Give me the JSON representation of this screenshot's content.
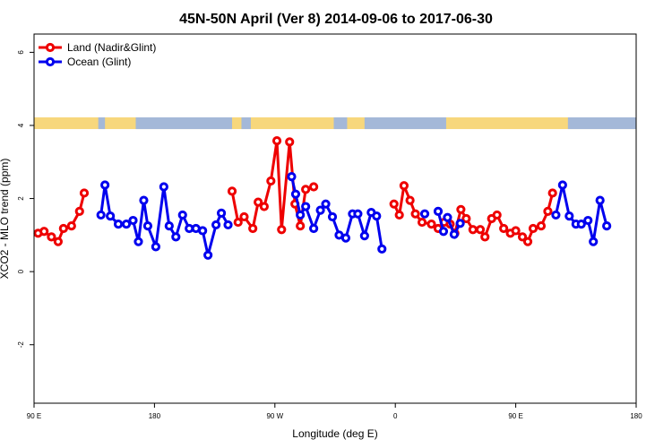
{
  "chart_data": {
    "type": "line",
    "title": "45N-50N April (Ver 8)   2014-09-06 to 2017-06-30",
    "xlabel": "Longitude (deg E)",
    "ylabel": "XCO2 - MLO trend (ppm)",
    "x_ticks": [
      {
        "value": 90,
        "label": "90 E"
      },
      {
        "value": 180,
        "label": "180"
      },
      {
        "value": 270,
        "label": "90 W"
      },
      {
        "value": 360,
        "label": "0"
      },
      {
        "value": 450,
        "label": "90 E"
      },
      {
        "value": 540,
        "label": "180"
      }
    ],
    "y_ticks": [
      {
        "value": -2,
        "label": "-2"
      },
      {
        "value": 0,
        "label": "0"
      },
      {
        "value": 2,
        "label": "2"
      },
      {
        "value": 4,
        "label": "4"
      },
      {
        "value": 6,
        "label": "6"
      }
    ],
    "xlim": [
      90,
      540
    ],
    "ylim": [
      -3.6,
      6.5
    ],
    "grid": false,
    "legend_position": "top-left",
    "land_mask": {
      "y_range": [
        3.9,
        4.22
      ],
      "land_color": "#f7d77c",
      "ocean_color": "#a4b8d8",
      "ocean_spans": [
        [
          138,
          143
        ],
        [
          166,
          238
        ],
        [
          245,
          252
        ],
        [
          314,
          324
        ],
        [
          337,
          398
        ],
        [
          489,
          540
        ]
      ]
    },
    "series": [
      {
        "name": "Land (Nadir&Glint)",
        "color": "#ee0000",
        "segments": [
          [
            [
              93,
              1.05
            ],
            [
              97.5,
              1.1
            ],
            [
              103,
              0.95
            ],
            [
              108,
              0.82
            ],
            [
              112,
              1.18
            ],
            [
              118,
              1.25
            ],
            [
              124,
              1.65
            ],
            [
              127.5,
              2.15
            ]
          ],
          [
            [
              238,
              2.2
            ],
            [
              242.5,
              1.35
            ],
            [
              247,
              1.5
            ],
            [
              253.5,
              1.18
            ],
            [
              257.5,
              1.9
            ],
            [
              262,
              1.78
            ],
            [
              267,
              2.48
            ],
            [
              271.5,
              3.58
            ],
            [
              275,
              1.15
            ],
            [
              281,
              3.55
            ],
            [
              285,
              1.85
            ],
            [
              289,
              1.25
            ],
            [
              293,
              2.25
            ],
            [
              299,
              2.32
            ]
          ],
          [
            [
              359,
              1.85
            ],
            [
              363,
              1.55
            ],
            [
              366.5,
              2.35
            ],
            [
              371,
              1.95
            ],
            [
              375,
              1.58
            ],
            [
              380,
              1.35
            ],
            [
              387,
              1.3
            ],
            [
              392,
              1.18
            ],
            [
              396.5,
              1.35
            ],
            [
              401,
              1.3
            ],
            [
              404.5,
              1.05
            ],
            [
              409,
              1.7
            ],
            [
              413,
              1.45
            ],
            [
              418,
              1.15
            ],
            [
              423.5,
              1.15
            ],
            [
              427,
              0.95
            ],
            [
              432,
              1.45
            ],
            [
              436,
              1.55
            ],
            [
              441,
              1.18
            ],
            [
              446,
              1.05
            ],
            [
              450,
              1.12
            ],
            [
              455,
              0.95
            ],
            [
              459,
              0.82
            ],
            [
              463,
              1.18
            ],
            [
              469,
              1.25
            ],
            [
              474,
              1.65
            ],
            [
              477.5,
              2.15
            ]
          ]
        ]
      },
      {
        "name": "Ocean (Glint)",
        "color": "#0000ee",
        "segments": [
          [
            [
              140,
              1.55
            ],
            [
              143,
              2.37
            ],
            [
              147,
              1.52
            ],
            [
              153,
              1.3
            ],
            [
              159,
              1.3
            ],
            [
              164,
              1.4
            ],
            [
              168,
              0.82
            ],
            [
              172,
              1.95
            ],
            [
              175,
              1.25
            ],
            [
              181,
              0.68
            ],
            [
              187,
              2.32
            ],
            [
              191,
              1.25
            ],
            [
              196,
              0.95
            ],
            [
              201,
              1.55
            ],
            [
              206,
              1.18
            ],
            [
              211,
              1.18
            ],
            [
              216,
              1.12
            ],
            [
              220,
              0.45
            ],
            [
              226,
              1.28
            ],
            [
              230,
              1.6
            ],
            [
              235,
              1.28
            ]
          ],
          [
            [
              282.5,
              2.6
            ],
            [
              285.5,
              2.12
            ],
            [
              289,
              1.55
            ],
            [
              293,
              1.78
            ],
            [
              299,
              1.18
            ],
            [
              304,
              1.68
            ],
            [
              308,
              1.85
            ],
            [
              313,
              1.5
            ],
            [
              318,
              1.0
            ],
            [
              323,
              0.92
            ],
            [
              328,
              1.58
            ],
            [
              332,
              1.58
            ],
            [
              337,
              0.98
            ],
            [
              342,
              1.62
            ],
            [
              346,
              1.52
            ],
            [
              350,
              0.62
            ]
          ],
          [
            [
              382,
              1.58
            ]
          ],
          [
            [
              392,
              1.65
            ],
            [
              396,
              1.1
            ]
          ],
          [
            [
              399,
              1.48
            ],
            [
              404,
              1.02
            ],
            [
              408.5,
              1.32
            ]
          ],
          [
            [
              480,
              1.55
            ],
            [
              485,
              2.37
            ],
            [
              490,
              1.52
            ],
            [
              495,
              1.3
            ],
            [
              499,
              1.3
            ],
            [
              504,
              1.4
            ],
            [
              508,
              0.82
            ],
            [
              513,
              1.95
            ],
            [
              518,
              1.25
            ]
          ]
        ]
      }
    ]
  }
}
